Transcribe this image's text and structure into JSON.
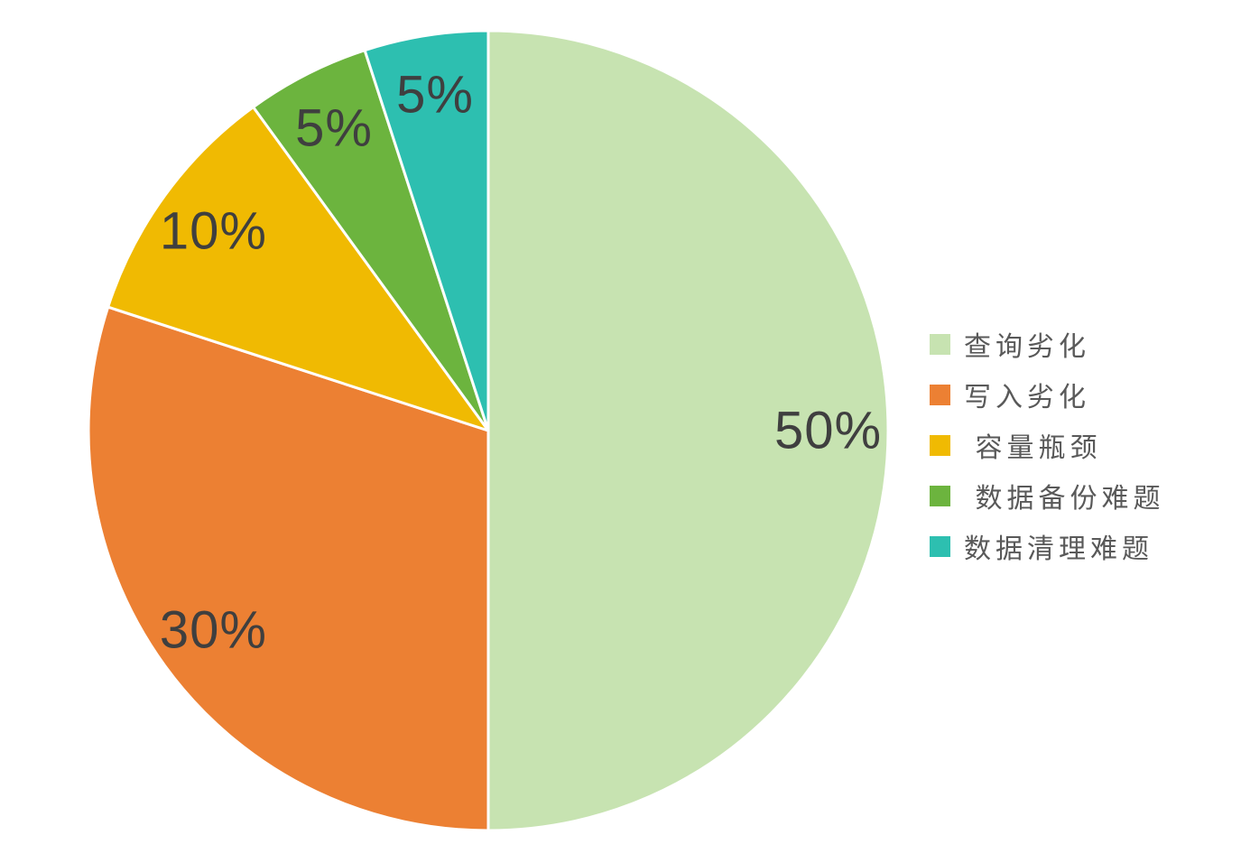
{
  "chart_data": {
    "type": "pie",
    "title": "",
    "legend_position": "right",
    "direction": "clockwise",
    "start_angle_deg": 0,
    "slices": [
      {
        "label": "查询劣化",
        "value": 50,
        "display": "50%",
        "color": "#c7e3b1"
      },
      {
        "label": "写入劣化",
        "value": 30,
        "display": "30%",
        "color": "#ec8033"
      },
      {
        "label": " 容量瓶颈",
        "value": 10,
        "display": "10%",
        "color": "#f0ba02"
      },
      {
        "label": " 数据备份难题",
        "value": 5,
        "display": "5%",
        "color": "#6cb43e"
      },
      {
        "label": "数据清理难题",
        "value": 5,
        "display": "5%",
        "color": "#2dbfb0"
      }
    ],
    "slice_label_color": "#3f3f3f",
    "legend_text_color": "#595959",
    "slice_border_color": "#ffffff",
    "background": "#ffffff"
  }
}
